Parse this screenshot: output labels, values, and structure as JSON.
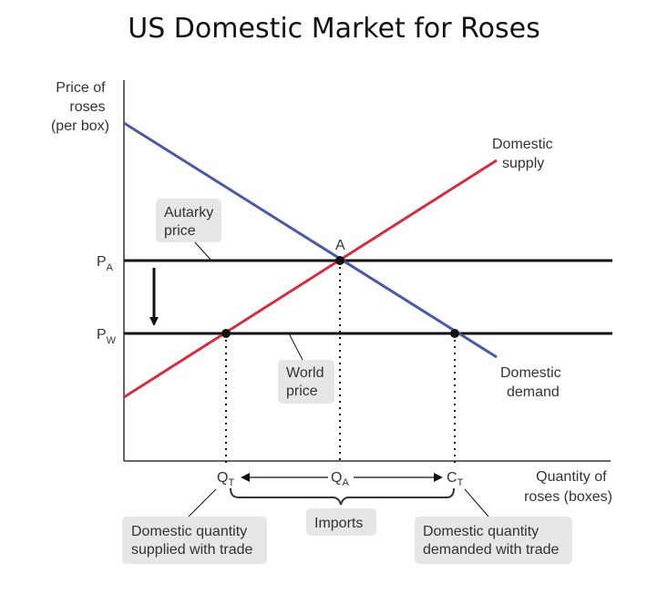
{
  "title": "US Domestic Market for Roses",
  "y_axis_label": [
    "Price of",
    "roses",
    "(per box)"
  ],
  "x_axis_label": [
    "Quantity of",
    "roses (boxes)"
  ],
  "price_labels": {
    "autarky": {
      "main": "P",
      "sub": "A"
    },
    "world": {
      "main": "P",
      "sub": "W"
    }
  },
  "point_label": "A",
  "quantity_labels": {
    "qt": {
      "main": "Q",
      "sub": "T"
    },
    "qa": {
      "main": "Q",
      "sub": "A"
    },
    "ct": {
      "main": "C",
      "sub": "T"
    }
  },
  "curves": {
    "supply": {
      "label": [
        "Domestic",
        "supply"
      ],
      "color": "#d42d3f"
    },
    "demand": {
      "label": [
        "Domestic",
        "demand"
      ],
      "color": "#4a58a8"
    }
  },
  "callouts": {
    "autarky_price": [
      "Autarky",
      "price"
    ],
    "world_price": [
      "World",
      "price"
    ],
    "imports": "Imports",
    "domestic_supplied": [
      "Domestic quantity",
      "supplied with trade"
    ],
    "domestic_demanded": [
      "Domestic quantity",
      "demanded with trade"
    ]
  },
  "colors": {
    "price_line": "#111111",
    "axis": "#333333",
    "callout_box": "#e6e6e6"
  }
}
